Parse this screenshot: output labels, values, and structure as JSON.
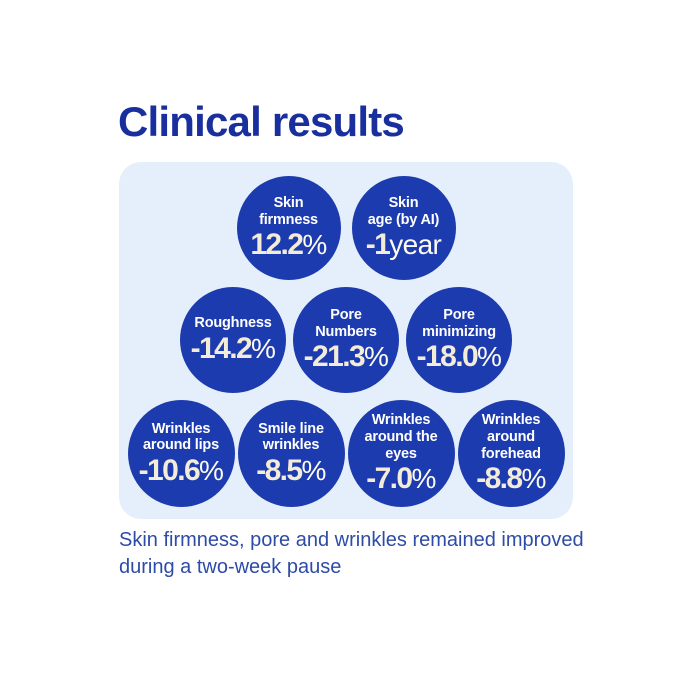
{
  "page": {
    "title": "Clinical results",
    "caption": {
      "line1": "Skin firmness, pore and wrinkles remained improved",
      "line2": "during a two-week pause"
    }
  },
  "colors": {
    "page_bg": "#ffffff",
    "title_text": "#1a2f9e",
    "panel_bg": "#e5effb",
    "circle_bg": "#1c3bae",
    "label_text": "#ffffff",
    "value_text": "#f3ecd9",
    "suffix_text": "#fdfbf0",
    "caption_text": "#2d4ba7"
  },
  "results": {
    "rows": [
      {
        "circles": [
          {
            "label1": "Skin",
            "label2": "firmness",
            "value": "12.2",
            "suffix": "%"
          },
          {
            "label1": "Skin",
            "label2": "age (by AI)",
            "value": "-1",
            "suffix": "year"
          }
        ]
      },
      {
        "circles": [
          {
            "label1": "Roughness",
            "value": "-14.2",
            "suffix": "%"
          },
          {
            "label1": "Pore",
            "label2": "Numbers",
            "value": "-21.3",
            "suffix": "%"
          },
          {
            "label1": "Pore",
            "label2": "minimizing",
            "value": "-18.0",
            "suffix": "%"
          }
        ]
      },
      {
        "circles": [
          {
            "label1": "Wrinkles",
            "label2": "around lips",
            "value": "-10.6",
            "suffix": "%"
          },
          {
            "label1": "Smile line",
            "label2": "wrinkles",
            "value": "-8.5",
            "suffix": "%"
          },
          {
            "label1": "Wrinkles",
            "label2": "around the",
            "label3": "eyes",
            "value": "-7.0",
            "suffix": "%"
          },
          {
            "label1": "Wrinkles",
            "label2": "around",
            "label3": "forehead",
            "value": "-8.8",
            "suffix": "%"
          }
        ]
      }
    ]
  },
  "chart_data": {
    "type": "table",
    "title": "Clinical results",
    "categories": [
      "Skin firmness",
      "Skin age (by AI)",
      "Roughness",
      "Pore Numbers",
      "Pore minimizing",
      "Wrinkles around lips",
      "Smile line wrinkles",
      "Wrinkles around the eyes",
      "Wrinkles around forehead"
    ],
    "values": [
      "12.2%",
      "-1 year",
      "-14.2%",
      "-21.3%",
      "-18.0%",
      "-10.6%",
      "-8.5%",
      "-7.0%",
      "-8.8%"
    ],
    "note": "Skin firmness, pore and wrinkles remained improved during a two-week pause",
    "layout": "bubble grid, rows of 2 / 3 / 4 circles inside rounded light-blue panel"
  }
}
